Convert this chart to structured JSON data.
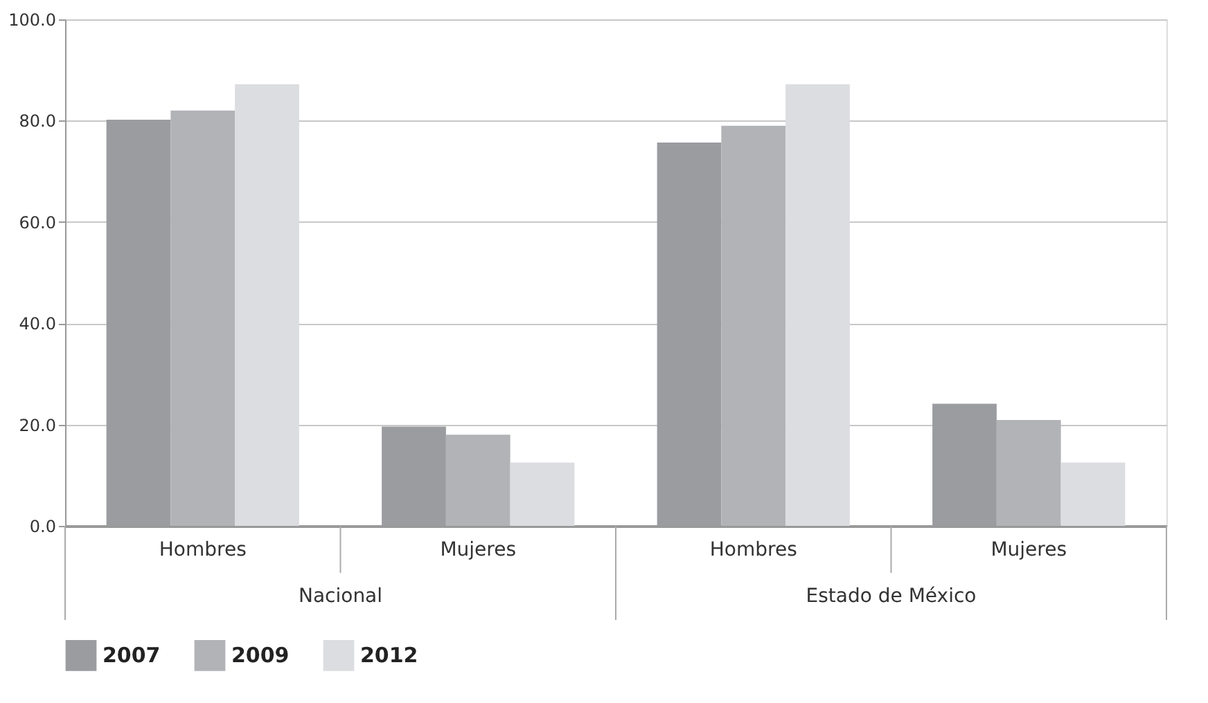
{
  "chart_data": {
    "type": "bar",
    "categories": [
      "Hombres",
      "Mujeres",
      "Hombres",
      "Mujeres"
    ],
    "annotations": [
      "Nacional",
      "Estado de México"
    ],
    "series": [
      {
        "name": "2007",
        "color": "#9b9ca0",
        "values": [
          80.2,
          19.6,
          75.7,
          24.1
        ]
      },
      {
        "name": "2009",
        "color": "#b2b3b7",
        "values": [
          82.0,
          18.0,
          79.0,
          20.9
        ]
      },
      {
        "name": "2012",
        "color": "#dcdde0",
        "values": [
          87.2,
          12.5,
          87.2,
          12.5
        ]
      }
    ],
    "ylim": [
      0,
      100
    ],
    "yticks": [
      {
        "value": 0,
        "label": "0.0"
      },
      {
        "value": 20,
        "label": "20.0"
      },
      {
        "value": 40,
        "label": "40.0"
      },
      {
        "value": 60,
        "label": "60.0"
      },
      {
        "value": 80,
        "label": "80.0"
      },
      {
        "value": 100,
        "label": "100.0"
      }
    ],
    "grid": "y",
    "legend": "bottom"
  }
}
